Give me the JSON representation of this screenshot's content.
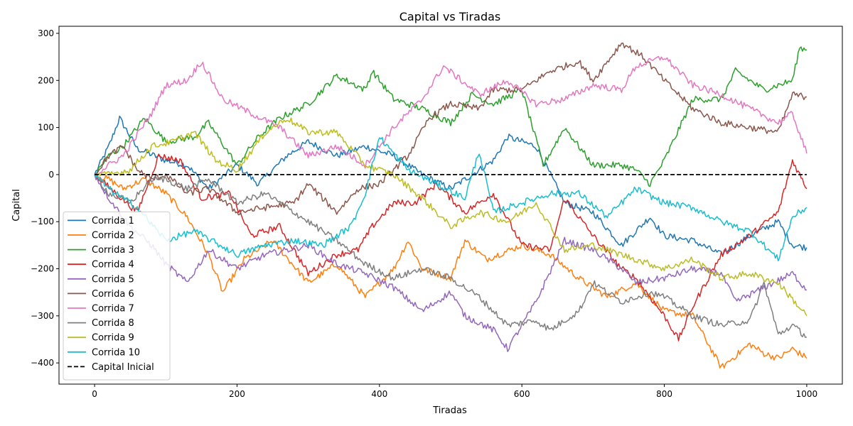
{
  "chart_data": {
    "type": "line",
    "title": "Capital vs Tiradas",
    "xlabel": "Tiradas",
    "ylabel": "Capital",
    "xlim": [
      -50,
      1050
    ],
    "ylim": [
      -445,
      315
    ],
    "xticks": [
      0,
      200,
      400,
      600,
      800,
      1000
    ],
    "yticks": [
      -400,
      -300,
      -200,
      -100,
      0,
      100,
      200,
      300
    ],
    "grid": false,
    "legend": "lower-left",
    "series": [
      {
        "name": "Corrida 1",
        "color": "#1f77b4",
        "points": [
          [
            0,
            0
          ],
          [
            20,
            60
          ],
          [
            35,
            120
          ],
          [
            60,
            55
          ],
          [
            100,
            30
          ],
          [
            130,
            20
          ],
          [
            160,
            -30
          ],
          [
            200,
            20
          ],
          [
            230,
            -20
          ],
          [
            270,
            40
          ],
          [
            300,
            70
          ],
          [
            340,
            40
          ],
          [
            380,
            60
          ],
          [
            420,
            40
          ],
          [
            460,
            0
          ],
          [
            500,
            -30
          ],
          [
            540,
            10
          ],
          [
            560,
            30
          ],
          [
            580,
            80
          ],
          [
            620,
            60
          ],
          [
            660,
            -60
          ],
          [
            700,
            -80
          ],
          [
            740,
            -150
          ],
          [
            780,
            -90
          ],
          [
            800,
            -130
          ],
          [
            840,
            -140
          ],
          [
            880,
            -170
          ],
          [
            920,
            -130
          ],
          [
            960,
            -100
          ],
          [
            980,
            -150
          ],
          [
            1000,
            -155
          ]
        ]
      },
      {
        "name": "Corrida 2",
        "color": "#ff7f0e",
        "points": [
          [
            0,
            0
          ],
          [
            20,
            -10
          ],
          [
            40,
            -30
          ],
          [
            70,
            -10
          ],
          [
            100,
            -40
          ],
          [
            130,
            -90
          ],
          [
            160,
            -170
          ],
          [
            180,
            -250
          ],
          [
            210,
            -180
          ],
          [
            250,
            -140
          ],
          [
            300,
            -230
          ],
          [
            340,
            -190
          ],
          [
            380,
            -260
          ],
          [
            420,
            -200
          ],
          [
            440,
            -140
          ],
          [
            460,
            -200
          ],
          [
            500,
            -220
          ],
          [
            520,
            -140
          ],
          [
            550,
            -180
          ],
          [
            600,
            -150
          ],
          [
            640,
            -170
          ],
          [
            680,
            -220
          ],
          [
            720,
            -260
          ],
          [
            760,
            -230
          ],
          [
            800,
            -290
          ],
          [
            840,
            -300
          ],
          [
            880,
            -410
          ],
          [
            920,
            -360
          ],
          [
            940,
            -380
          ],
          [
            960,
            -390
          ],
          [
            980,
            -370
          ],
          [
            1000,
            -390
          ]
        ]
      },
      {
        "name": "Corrida 3",
        "color": "#2ca02c",
        "points": [
          [
            0,
            0
          ],
          [
            20,
            40
          ],
          [
            40,
            60
          ],
          [
            70,
            120
          ],
          [
            100,
            70
          ],
          [
            140,
            80
          ],
          [
            160,
            110
          ],
          [
            200,
            20
          ],
          [
            230,
            80
          ],
          [
            260,
            120
          ],
          [
            300,
            150
          ],
          [
            340,
            210
          ],
          [
            380,
            180
          ],
          [
            390,
            220
          ],
          [
            420,
            160
          ],
          [
            460,
            140
          ],
          [
            500,
            110
          ],
          [
            530,
            170
          ],
          [
            560,
            150
          ],
          [
            600,
            180
          ],
          [
            630,
            20
          ],
          [
            660,
            100
          ],
          [
            700,
            20
          ],
          [
            740,
            20
          ],
          [
            760,
            10
          ],
          [
            780,
            -20
          ],
          [
            800,
            30
          ],
          [
            840,
            160
          ],
          [
            880,
            160
          ],
          [
            900,
            220
          ],
          [
            940,
            180
          ],
          [
            980,
            200
          ],
          [
            990,
            270
          ],
          [
            1000,
            265
          ]
        ]
      },
      {
        "name": "Corrida 4",
        "color": "#d62728",
        "points": [
          [
            0,
            0
          ],
          [
            30,
            -40
          ],
          [
            60,
            -80
          ],
          [
            90,
            40
          ],
          [
            120,
            30
          ],
          [
            150,
            -50
          ],
          [
            190,
            -40
          ],
          [
            220,
            -130
          ],
          [
            260,
            -110
          ],
          [
            300,
            -210
          ],
          [
            340,
            -170
          ],
          [
            370,
            -160
          ],
          [
            390,
            -110
          ],
          [
            420,
            -60
          ],
          [
            450,
            -60
          ],
          [
            480,
            -20
          ],
          [
            520,
            -80
          ],
          [
            560,
            -40
          ],
          [
            600,
            -150
          ],
          [
            640,
            -160
          ],
          [
            660,
            -50
          ],
          [
            700,
            -130
          ],
          [
            740,
            -200
          ],
          [
            760,
            -220
          ],
          [
            800,
            -300
          ],
          [
            820,
            -350
          ],
          [
            840,
            -280
          ],
          [
            880,
            -170
          ],
          [
            920,
            -130
          ],
          [
            960,
            -80
          ],
          [
            980,
            30
          ],
          [
            1000,
            -30
          ]
        ]
      },
      {
        "name": "Corrida 5",
        "color": "#9467bd",
        "points": [
          [
            0,
            0
          ],
          [
            20,
            -50
          ],
          [
            50,
            -110
          ],
          [
            80,
            -150
          ],
          [
            100,
            -190
          ],
          [
            130,
            -230
          ],
          [
            160,
            -160
          ],
          [
            200,
            -200
          ],
          [
            240,
            -170
          ],
          [
            300,
            -150
          ],
          [
            340,
            -190
          ],
          [
            380,
            -210
          ],
          [
            420,
            -240
          ],
          [
            460,
            -290
          ],
          [
            500,
            -250
          ],
          [
            520,
            -300
          ],
          [
            560,
            -330
          ],
          [
            580,
            -370
          ],
          [
            620,
            -270
          ],
          [
            660,
            -140
          ],
          [
            700,
            -160
          ],
          [
            740,
            -200
          ],
          [
            760,
            -230
          ],
          [
            800,
            -220
          ],
          [
            840,
            -200
          ],
          [
            880,
            -210
          ],
          [
            900,
            -270
          ],
          [
            940,
            -240
          ],
          [
            980,
            -210
          ],
          [
            1000,
            -245
          ]
        ]
      },
      {
        "name": "Corrida 6",
        "color": "#8c564b",
        "points": [
          [
            0,
            0
          ],
          [
            20,
            40
          ],
          [
            40,
            60
          ],
          [
            60,
            10
          ],
          [
            80,
            -10
          ],
          [
            100,
            0
          ],
          [
            130,
            -40
          ],
          [
            160,
            -30
          ],
          [
            200,
            -80
          ],
          [
            240,
            -70
          ],
          [
            280,
            -60
          ],
          [
            300,
            -20
          ],
          [
            340,
            -80
          ],
          [
            370,
            -30
          ],
          [
            400,
            -20
          ],
          [
            440,
            40
          ],
          [
            470,
            120
          ],
          [
            500,
            150
          ],
          [
            540,
            140
          ],
          [
            560,
            180
          ],
          [
            600,
            180
          ],
          [
            640,
            220
          ],
          [
            680,
            240
          ],
          [
            700,
            200
          ],
          [
            740,
            280
          ],
          [
            770,
            250
          ],
          [
            800,
            200
          ],
          [
            840,
            140
          ],
          [
            880,
            110
          ],
          [
            920,
            100
          ],
          [
            960,
            90
          ],
          [
            980,
            170
          ],
          [
            1000,
            165
          ]
        ]
      },
      {
        "name": "Corrida 7",
        "color": "#e377c2",
        "points": [
          [
            0,
            0
          ],
          [
            20,
            20
          ],
          [
            40,
            40
          ],
          [
            80,
            130
          ],
          [
            100,
            190
          ],
          [
            130,
            200
          ],
          [
            150,
            240
          ],
          [
            180,
            160
          ],
          [
            220,
            130
          ],
          [
            260,
            100
          ],
          [
            300,
            40
          ],
          [
            340,
            60
          ],
          [
            380,
            20
          ],
          [
            420,
            100
          ],
          [
            460,
            160
          ],
          [
            490,
            230
          ],
          [
            540,
            170
          ],
          [
            580,
            200
          ],
          [
            620,
            150
          ],
          [
            660,
            160
          ],
          [
            700,
            190
          ],
          [
            740,
            180
          ],
          [
            760,
            230
          ],
          [
            800,
            250
          ],
          [
            840,
            190
          ],
          [
            880,
            170
          ],
          [
            920,
            140
          ],
          [
            960,
            110
          ],
          [
            980,
            130
          ],
          [
            1000,
            45
          ]
        ]
      },
      {
        "name": "Corrida 8",
        "color": "#7f7f7f",
        "points": [
          [
            0,
            0
          ],
          [
            20,
            -40
          ],
          [
            50,
            -60
          ],
          [
            80,
            -10
          ],
          [
            100,
            -10
          ],
          [
            130,
            -30
          ],
          [
            160,
            -10
          ],
          [
            200,
            -60
          ],
          [
            240,
            -40
          ],
          [
            280,
            -80
          ],
          [
            320,
            -120
          ],
          [
            340,
            -140
          ],
          [
            380,
            -190
          ],
          [
            420,
            -220
          ],
          [
            460,
            -200
          ],
          [
            500,
            -220
          ],
          [
            540,
            -260
          ],
          [
            580,
            -320
          ],
          [
            620,
            -310
          ],
          [
            640,
            -330
          ],
          [
            680,
            -290
          ],
          [
            700,
            -230
          ],
          [
            740,
            -270
          ],
          [
            780,
            -250
          ],
          [
            800,
            -260
          ],
          [
            840,
            -300
          ],
          [
            880,
            -320
          ],
          [
            920,
            -310
          ],
          [
            940,
            -230
          ],
          [
            960,
            -340
          ],
          [
            980,
            -320
          ],
          [
            1000,
            -345
          ]
        ]
      },
      {
        "name": "Corrida 9",
        "color": "#bcbd22",
        "points": [
          [
            0,
            0
          ],
          [
            20,
            0
          ],
          [
            50,
            10
          ],
          [
            80,
            60
          ],
          [
            110,
            70
          ],
          [
            140,
            90
          ],
          [
            170,
            30
          ],
          [
            200,
            10
          ],
          [
            240,
            90
          ],
          [
            270,
            120
          ],
          [
            300,
            90
          ],
          [
            340,
            90
          ],
          [
            380,
            20
          ],
          [
            420,
            0
          ],
          [
            460,
            -50
          ],
          [
            500,
            -110
          ],
          [
            540,
            -80
          ],
          [
            580,
            -100
          ],
          [
            620,
            -60
          ],
          [
            660,
            -160
          ],
          [
            700,
            -150
          ],
          [
            740,
            -170
          ],
          [
            780,
            -190
          ],
          [
            800,
            -200
          ],
          [
            840,
            -180
          ],
          [
            880,
            -220
          ],
          [
            920,
            -210
          ],
          [
            960,
            -230
          ],
          [
            1000,
            -300
          ]
        ]
      },
      {
        "name": "Corrida 10",
        "color": "#17becf",
        "points": [
          [
            0,
            0
          ],
          [
            20,
            -30
          ],
          [
            60,
            -70
          ],
          [
            100,
            -140
          ],
          [
            140,
            -120
          ],
          [
            200,
            -170
          ],
          [
            240,
            -150
          ],
          [
            280,
            -140
          ],
          [
            320,
            -150
          ],
          [
            360,
            -110
          ],
          [
            380,
            -40
          ],
          [
            400,
            80
          ],
          [
            440,
            10
          ],
          [
            480,
            -20
          ],
          [
            520,
            -50
          ],
          [
            540,
            50
          ],
          [
            560,
            -80
          ],
          [
            600,
            -60
          ],
          [
            640,
            -40
          ],
          [
            680,
            -40
          ],
          [
            720,
            -90
          ],
          [
            760,
            -30
          ],
          [
            800,
            -60
          ],
          [
            840,
            -70
          ],
          [
            880,
            -100
          ],
          [
            920,
            -120
          ],
          [
            960,
            -180
          ],
          [
            980,
            -90
          ],
          [
            1000,
            -70
          ]
        ]
      },
      {
        "name": "Capital Inicial",
        "color": "#000000",
        "dashed": true,
        "points": [
          [
            0,
            0
          ],
          [
            1000,
            0
          ]
        ]
      }
    ]
  }
}
